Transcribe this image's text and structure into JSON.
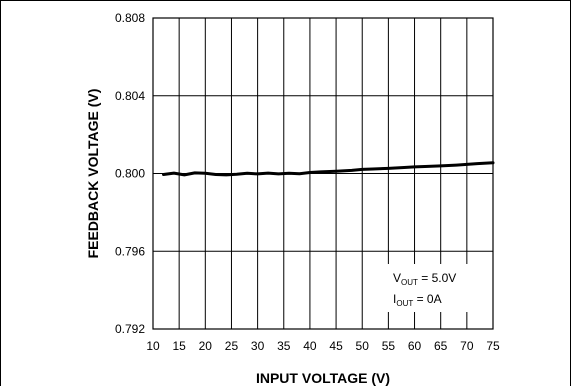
{
  "chart_data": {
    "type": "line",
    "xlabel": "INPUT VOLTAGE (V)",
    "ylabel": "FEEDBACK VOLTAGE (V)",
    "xlim": [
      10,
      75
    ],
    "ylim": [
      0.792,
      0.808
    ],
    "x_ticks": [
      "10",
      "15",
      "20",
      "25",
      "30",
      "35",
      "40",
      "45",
      "50",
      "55",
      "60",
      "65",
      "70",
      "75"
    ],
    "y_ticks": [
      "0.792",
      "0.796",
      "0.800",
      "0.804",
      "0.808"
    ],
    "grid": true,
    "annotations": [
      {
        "main": "V",
        "sub": "OUT",
        "rest": " = 5.0V"
      },
      {
        "main": "I",
        "sub": "OUT",
        "rest": " = 0A"
      }
    ],
    "series": [
      {
        "color": "#000000",
        "x": [
          12,
          14,
          16,
          18,
          20,
          22,
          24,
          26,
          28,
          30,
          32,
          34,
          36,
          38,
          40,
          42,
          45,
          48,
          50,
          52,
          55,
          58,
          60,
          62,
          65,
          68,
          70,
          72,
          75
        ],
        "y": [
          0.79995,
          0.80002,
          0.79993,
          0.80003,
          0.80001,
          0.79995,
          0.79993,
          0.79996,
          0.80001,
          0.79998,
          0.80002,
          0.79998,
          0.80001,
          0.79999,
          0.80005,
          0.80008,
          0.80012,
          0.80016,
          0.80021,
          0.80023,
          0.80026,
          0.80031,
          0.80034,
          0.80036,
          0.80039,
          0.80043,
          0.80047,
          0.80051,
          0.80055
        ]
      }
    ]
  }
}
